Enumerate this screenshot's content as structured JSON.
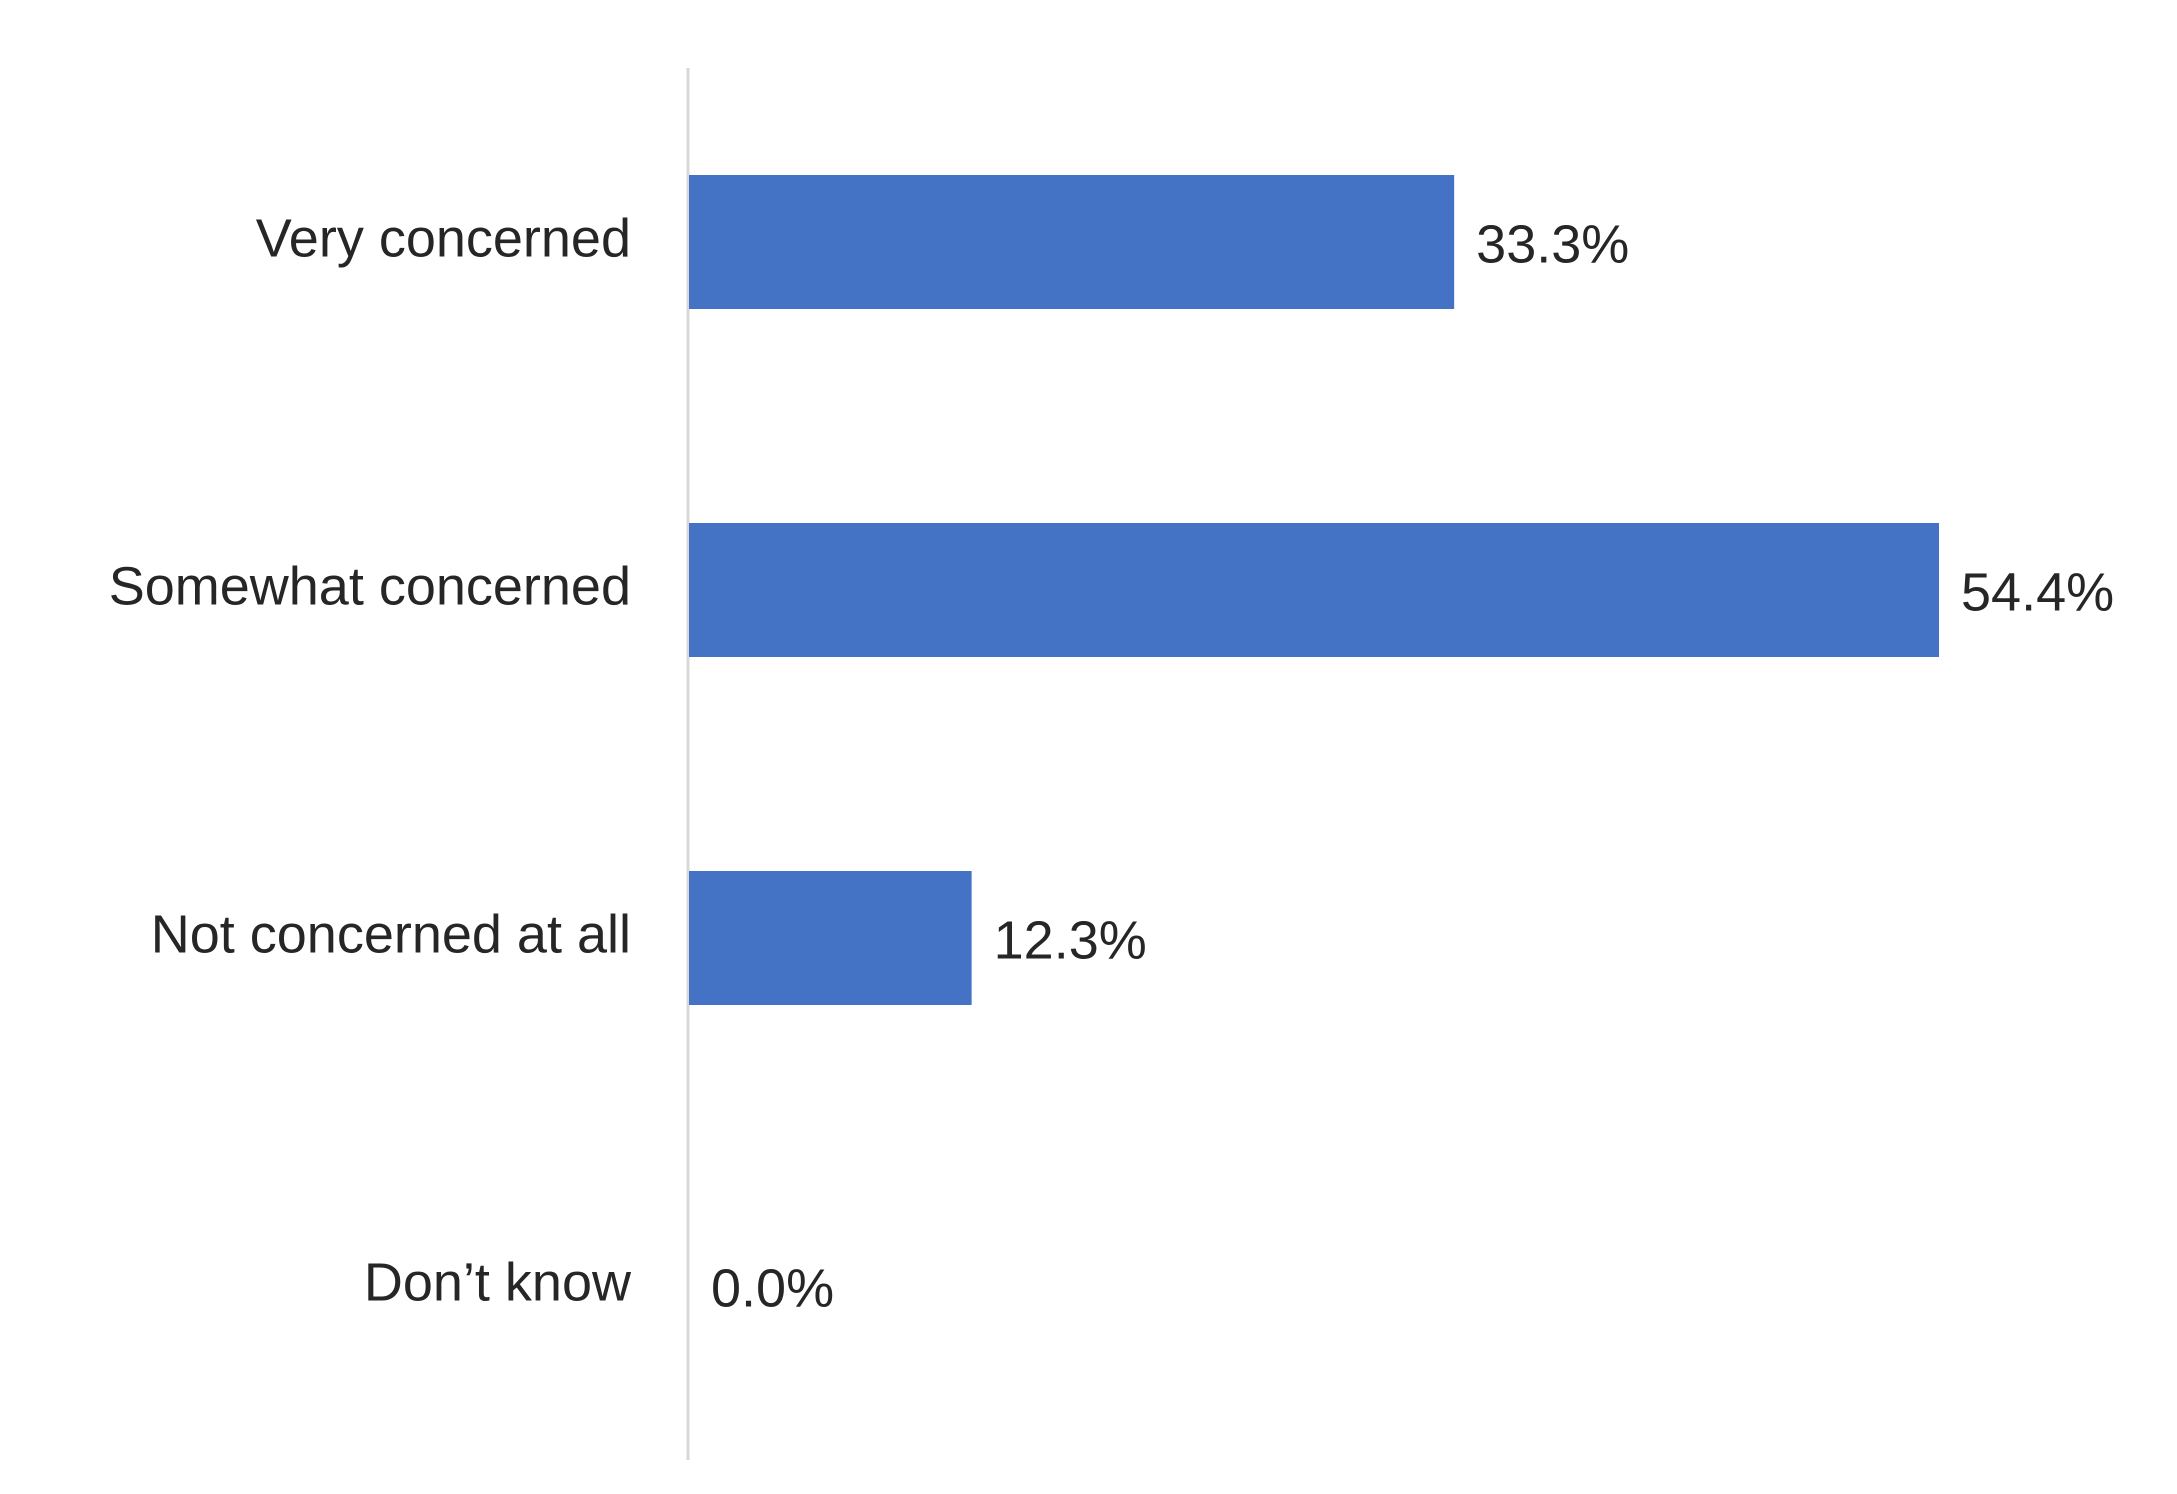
{
  "chart_data": {
    "type": "bar",
    "orientation": "horizontal",
    "categories": [
      "Very concerned",
      "Somewhat concerned",
      "Not concerned at all",
      "Don’t know"
    ],
    "values": [
      33.3,
      54.4,
      12.3,
      0.0
    ],
    "value_labels": [
      "33.3%",
      "54.4%",
      "12.3%",
      "0.0%"
    ],
    "title": "",
    "xlabel": "",
    "ylabel": "",
    "xlim": [
      0,
      60
    ],
    "grid": false,
    "legend": "none",
    "bar_color": "#4472C4",
    "axis_color": "#D9D9D9",
    "text_color": "#262626"
  }
}
